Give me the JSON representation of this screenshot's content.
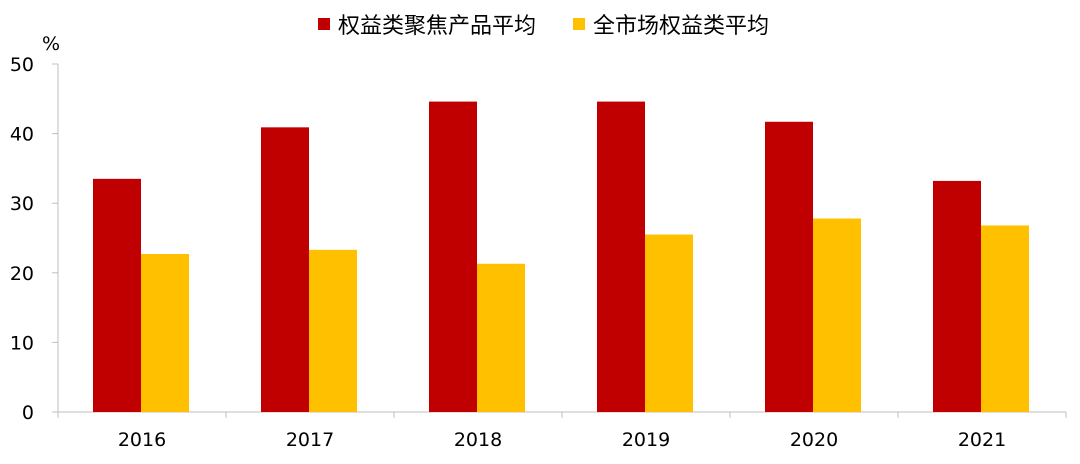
{
  "chart_data": {
    "type": "bar",
    "categories": [
      "2016",
      "2017",
      "2018",
      "2019",
      "2020",
      "2021"
    ],
    "series": [
      {
        "name": "权益类聚焦产品平均",
        "color": "#C00000",
        "values": [
          33.5,
          40.9,
          44.6,
          44.6,
          41.7,
          33.2
        ]
      },
      {
        "name": "全市场权益类平均",
        "color": "#FFC000",
        "values": [
          22.7,
          23.3,
          21.3,
          25.5,
          27.8,
          26.8
        ]
      }
    ],
    "y_unit": "%",
    "ylim": [
      0,
      50
    ],
    "yticks": [
      "0",
      "10",
      "20",
      "30",
      "40",
      "50"
    ],
    "grid": false,
    "legend_position": "top-center"
  }
}
